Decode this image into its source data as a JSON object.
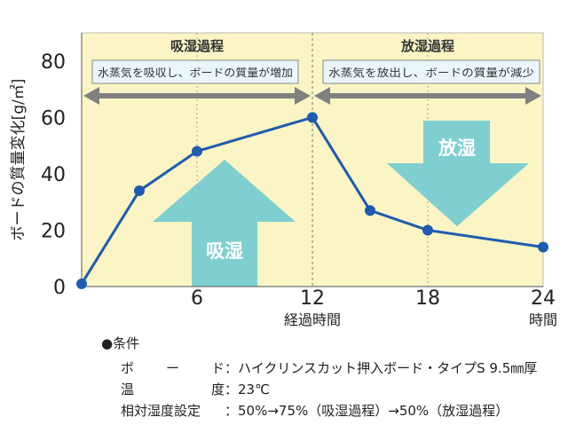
{
  "chart_data": {
    "type": "line",
    "ylabel": "ボードの質量変化[g/㎡]",
    "xlabel": "経過時間",
    "x_unit_label": "時間",
    "xlim": [
      0,
      24
    ],
    "ylim": [
      0,
      90
    ],
    "x_ticks": [
      "6",
      "12",
      "18",
      "24"
    ],
    "x_tick_values": [
      6,
      12,
      18,
      24
    ],
    "y_ticks": [
      "0",
      "20",
      "40",
      "60",
      "80"
    ],
    "y_tick_values": [
      0,
      20,
      40,
      60,
      80
    ],
    "series": [
      {
        "x": [
          0,
          3,
          6,
          12,
          15,
          18,
          24
        ],
        "values": [
          1,
          34,
          48,
          60,
          27,
          20,
          14
        ]
      }
    ],
    "phases": [
      {
        "title": "吸湿過程",
        "note": "水蒸気を吸収し、ボードの質量が増加",
        "x_range": [
          0,
          12
        ]
      },
      {
        "title": "放湿過程",
        "note": "水蒸気を放出し、ボードの質量が減少",
        "x_range": [
          12,
          24
        ]
      }
    ],
    "big_arrows": {
      "up_label": "吸湿",
      "down_label": "放湿"
    },
    "colors": {
      "line": "#1f5bb0",
      "panel_bg": "#fbf4c4",
      "arrow": "#7fcfd0",
      "gray_arrow": "#808080",
      "note_box": "#eaf6fb"
    }
  },
  "conditions": {
    "header": "●条件",
    "rows": [
      {
        "key_chars": [
          "ボ",
          "ー",
          "ド"
        ],
        "value": "：ハイクリンスカット押入ボード・タイプS 9.5㎜厚"
      },
      {
        "key_chars": [
          "温",
          "度"
        ],
        "value": "：23℃"
      },
      {
        "key_chars": [
          "相対湿度設定"
        ],
        "value": "：50%→75%（吸湿過程）→50%（放湿過程）"
      }
    ]
  }
}
